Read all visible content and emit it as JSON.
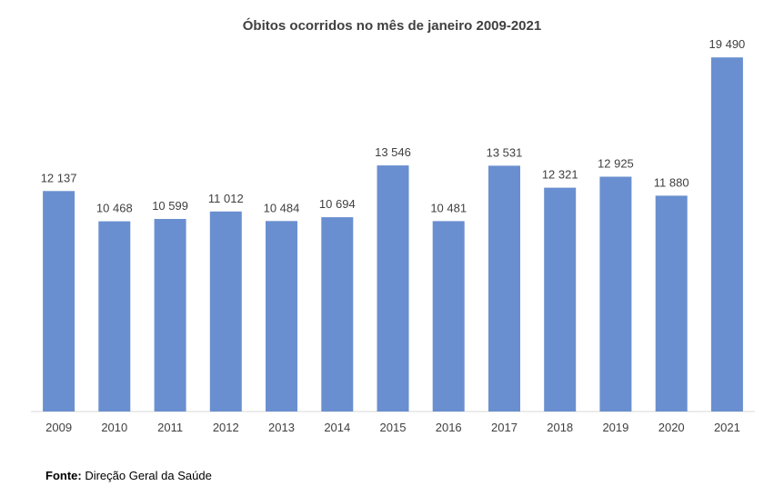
{
  "chart_data": {
    "type": "bar",
    "title": "Óbitos ocorridos no mês de janeiro 2009-2021",
    "xlabel": "",
    "ylabel": "",
    "categories": [
      "2009",
      "2010",
      "2011",
      "2012",
      "2013",
      "2014",
      "2015",
      "2016",
      "2017",
      "2018",
      "2019",
      "2020",
      "2021"
    ],
    "values": [
      12137,
      10468,
      10599,
      11012,
      10484,
      10694,
      13546,
      10481,
      13531,
      12321,
      12925,
      11880,
      19490
    ],
    "data_labels": [
      "12 137",
      "10 468",
      "10 599",
      "11 012",
      "10 484",
      "10 694",
      "13 546",
      "10 481",
      "13 531",
      "12 321",
      "12 925",
      "11 880",
      "19 490"
    ],
    "ylim": [
      0,
      20000
    ],
    "grid": false,
    "legend": "none",
    "bar_color": "#6a8fd0"
  },
  "source": {
    "label": "Fonte:",
    "text": " Direção Geral da Saúde"
  }
}
